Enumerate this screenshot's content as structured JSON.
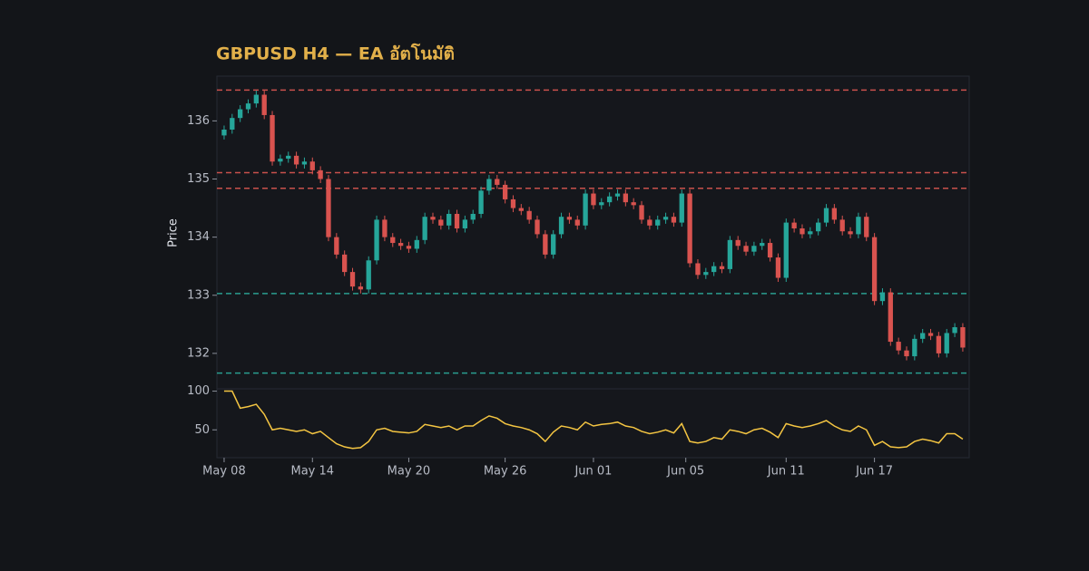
{
  "chart_data": {
    "type": "candlestick",
    "title": "GBPUSD H4 — EA อัตโนมัติ",
    "ylabel": "Price",
    "up_color": "#26a69a",
    "down_color": "#d9534f",
    "x": [
      0,
      1,
      2,
      3,
      4,
      5,
      6,
      7,
      8,
      9,
      10,
      11,
      12,
      13,
      14,
      15,
      16,
      17,
      18,
      19,
      20,
      21,
      22,
      23,
      24,
      25,
      26,
      27,
      28,
      29,
      30,
      31,
      32,
      33,
      34,
      35,
      36,
      37,
      38,
      39,
      40,
      41,
      42,
      43,
      44,
      45,
      46,
      47,
      48,
      49,
      50,
      51,
      52,
      53,
      54,
      55,
      56,
      57,
      58,
      59,
      60,
      61,
      62,
      63,
      64,
      65,
      66,
      67,
      68,
      69,
      70,
      71,
      72,
      73,
      74,
      75,
      76,
      77,
      78,
      79,
      80,
      81,
      82,
      83,
      84,
      85,
      86,
      87,
      88,
      89,
      90,
      91,
      92
    ],
    "open": [
      135.75,
      135.85,
      136.05,
      136.2,
      136.3,
      136.45,
      136.1,
      135.3,
      135.35,
      135.4,
      135.25,
      135.3,
      135.15,
      135.0,
      134.0,
      133.7,
      133.4,
      133.15,
      133.1,
      133.6,
      134.3,
      134.0,
      133.9,
      133.85,
      133.8,
      133.95,
      134.35,
      134.3,
      134.2,
      134.4,
      134.15,
      134.3,
      134.4,
      134.8,
      135.0,
      134.9,
      134.65,
      134.5,
      134.45,
      134.3,
      134.05,
      133.7,
      134.05,
      134.35,
      134.3,
      134.2,
      134.75,
      134.55,
      134.6,
      134.7,
      134.75,
      134.6,
      134.55,
      134.3,
      134.2,
      134.3,
      134.35,
      134.25,
      134.75,
      133.55,
      133.35,
      133.4,
      133.5,
      133.45,
      133.95,
      133.85,
      133.75,
      133.85,
      133.9,
      133.65,
      133.3,
      134.25,
      134.15,
      134.05,
      134.1,
      134.25,
      134.5,
      134.3,
      134.1,
      134.05,
      134.35,
      134.0,
      132.9,
      133.05,
      132.2,
      132.05,
      131.95,
      132.25,
      132.35,
      132.3,
      132.0,
      132.35,
      132.45
    ],
    "high": [
      135.92,
      136.12,
      136.27,
      136.37,
      136.52,
      136.52,
      136.17,
      135.42,
      135.47,
      135.47,
      135.37,
      135.37,
      135.22,
      135.07,
      134.07,
      133.77,
      133.47,
      133.22,
      133.67,
      134.37,
      134.37,
      134.07,
      133.97,
      133.92,
      134.02,
      134.42,
      134.42,
      134.37,
      134.47,
      134.47,
      134.37,
      134.47,
      134.87,
      135.07,
      135.07,
      134.97,
      134.72,
      134.57,
      134.52,
      134.37,
      134.12,
      134.12,
      134.42,
      134.42,
      134.37,
      134.82,
      134.82,
      134.67,
      134.77,
      134.82,
      134.82,
      134.67,
      134.62,
      134.37,
      134.37,
      134.42,
      134.42,
      134.82,
      134.82,
      133.62,
      133.47,
      133.57,
      133.57,
      134.02,
      134.02,
      133.92,
      133.92,
      133.97,
      133.97,
      133.72,
      134.32,
      134.32,
      134.22,
      134.17,
      134.32,
      134.57,
      134.57,
      134.37,
      134.17,
      134.42,
      134.42,
      134.07,
      133.12,
      133.12,
      132.27,
      132.12,
      132.32,
      132.42,
      132.42,
      132.37,
      132.42,
      132.52,
      132.52
    ],
    "low": [
      135.68,
      135.78,
      135.98,
      136.13,
      136.23,
      136.03,
      135.23,
      135.23,
      135.28,
      135.18,
      135.18,
      135.08,
      134.93,
      133.93,
      133.63,
      133.33,
      133.08,
      133.03,
      133.03,
      133.53,
      133.93,
      133.83,
      133.78,
      133.73,
      133.73,
      133.88,
      134.23,
      134.13,
      134.13,
      134.08,
      134.08,
      134.23,
      134.33,
      134.73,
      134.83,
      134.58,
      134.43,
      134.38,
      134.23,
      133.98,
      133.63,
      133.63,
      133.98,
      134.23,
      134.13,
      134.13,
      134.48,
      134.48,
      134.53,
      134.63,
      134.53,
      134.48,
      134.23,
      134.13,
      134.13,
      134.23,
      134.18,
      134.18,
      133.48,
      133.28,
      133.28,
      133.33,
      133.38,
      133.38,
      133.78,
      133.68,
      133.68,
      133.78,
      133.58,
      133.23,
      133.23,
      134.08,
      133.98,
      133.98,
      134.03,
      134.18,
      134.23,
      134.03,
      133.98,
      133.98,
      133.93,
      132.83,
      132.83,
      132.13,
      131.98,
      131.88,
      131.88,
      132.18,
      132.23,
      131.93,
      131.93,
      132.28,
      132.03
    ],
    "close": [
      135.85,
      136.05,
      136.2,
      136.3,
      136.45,
      136.1,
      135.3,
      135.35,
      135.4,
      135.25,
      135.3,
      135.15,
      135.0,
      134.0,
      133.7,
      133.4,
      133.15,
      133.1,
      133.6,
      134.3,
      134.0,
      133.9,
      133.85,
      133.8,
      133.95,
      134.35,
      134.3,
      134.2,
      134.4,
      134.15,
      134.3,
      134.4,
      134.8,
      135.0,
      134.9,
      134.65,
      134.5,
      134.45,
      134.3,
      134.05,
      133.7,
      134.05,
      134.35,
      134.3,
      134.2,
      134.75,
      134.55,
      134.6,
      134.7,
      134.75,
      134.6,
      134.55,
      134.3,
      134.2,
      134.3,
      134.35,
      134.25,
      134.75,
      133.55,
      133.35,
      133.4,
      133.5,
      133.45,
      133.95,
      133.85,
      133.75,
      133.85,
      133.9,
      133.65,
      133.3,
      134.25,
      134.15,
      134.05,
      134.1,
      134.25,
      134.5,
      134.3,
      134.1,
      134.05,
      134.35,
      134.0,
      132.9,
      133.05,
      132.2,
      132.05,
      131.95,
      132.25,
      132.35,
      132.3,
      132.0,
      132.35,
      132.45,
      132.1
    ],
    "hlines": [
      {
        "value": 136.53,
        "color": "#c9514c"
      },
      {
        "value": 135.11,
        "color": "#c9514c"
      },
      {
        "value": 134.84,
        "color": "#c9514c"
      },
      {
        "value": 133.03,
        "color": "#2a9d8f"
      },
      {
        "value": 131.66,
        "color": "#2a9d8f"
      }
    ],
    "xlim": [
      -0.9,
      92.8
    ],
    "xticks": [
      {
        "value": 0,
        "label": "May 08"
      },
      {
        "value": 11,
        "label": "May 14"
      },
      {
        "value": 23,
        "label": "May 20"
      },
      {
        "value": 35,
        "label": "May 26"
      },
      {
        "value": 46,
        "label": "Jun 01"
      },
      {
        "value": 57.5,
        "label": "Jun 05"
      },
      {
        "value": 70,
        "label": "Jun 11"
      },
      {
        "value": 81,
        "label": "Jun 17"
      }
    ],
    "ylim": [
      131.39,
      136.77
    ],
    "yticks": [
      132,
      133,
      134,
      135,
      136
    ],
    "indicator": {
      "type": "line",
      "color": "#f4c542",
      "ylim": [
        14,
        103
      ],
      "yticks": [
        50,
        100
      ],
      "values": [
        100,
        100,
        78,
        80,
        83,
        70,
        50,
        52,
        50,
        48,
        50,
        45,
        48,
        40,
        32,
        28,
        26,
        27,
        35,
        50,
        52,
        48,
        47,
        46,
        48,
        57,
        55,
        53,
        55,
        50,
        55,
        55,
        62,
        68,
        65,
        58,
        55,
        53,
        50,
        45,
        35,
        47,
        55,
        53,
        50,
        60,
        55,
        57,
        58,
        60,
        55,
        53,
        48,
        45,
        47,
        50,
        46,
        58,
        35,
        33,
        35,
        40,
        38,
        50,
        48,
        45,
        50,
        52,
        47,
        40,
        58,
        55,
        53,
        55,
        58,
        62,
        55,
        50,
        48,
        55,
        50,
        30,
        35,
        28,
        27,
        28,
        35,
        38,
        36,
        33,
        45,
        45,
        38
      ]
    }
  }
}
